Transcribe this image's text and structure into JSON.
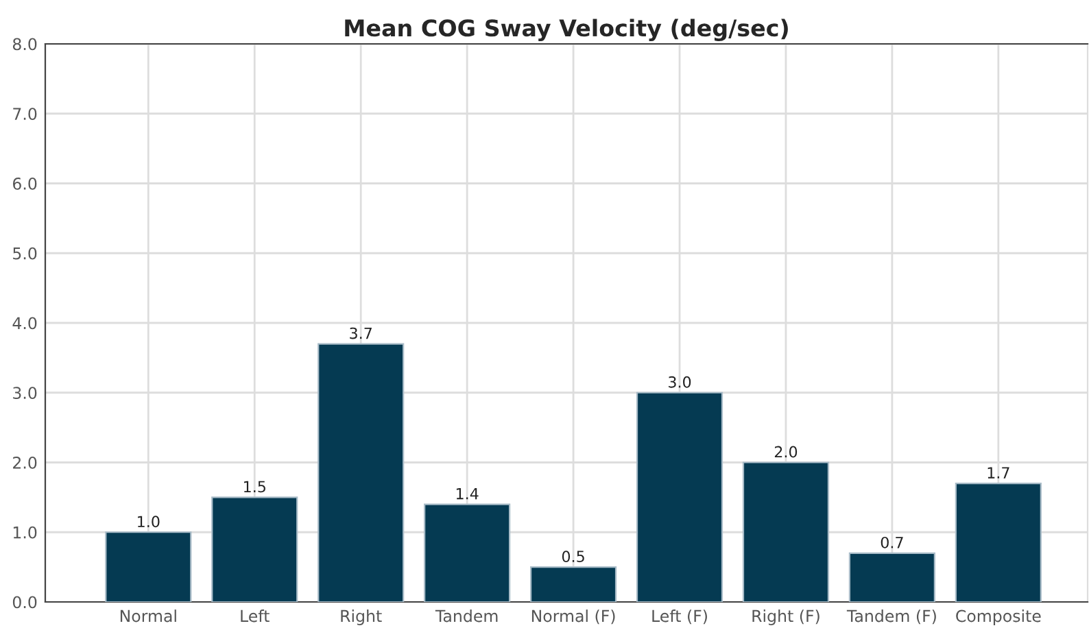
{
  "chart_data": {
    "type": "bar",
    "title": "Mean COG Sway Velocity (deg/sec)",
    "categories": [
      "Normal",
      "Left",
      "Right",
      "Tandem",
      "Normal (F)",
      "Left (F)",
      "Right (F)",
      "Tandem (F)",
      "Composite"
    ],
    "values": [
      1.0,
      1.5,
      3.7,
      1.4,
      0.5,
      3.0,
      2.0,
      0.7,
      1.7
    ],
    "color": "#053a52",
    "ylim": [
      0,
      8
    ],
    "yticks": [
      {
        "value": 0,
        "label": "0.0"
      },
      {
        "value": 1,
        "label": "1.0"
      },
      {
        "value": 2,
        "label": "2.0"
      },
      {
        "value": 3,
        "label": "3.0"
      },
      {
        "value": 4,
        "label": "4.0"
      },
      {
        "value": 5,
        "label": "5.0"
      },
      {
        "value": 6,
        "label": "6.0"
      },
      {
        "value": 7,
        "label": "7.0"
      },
      {
        "value": 8,
        "label": "8.0"
      }
    ],
    "value_labels": [
      "1.0",
      "1.5",
      "3.7",
      "1.4",
      "0.5",
      "3.0",
      "2.0",
      "0.7",
      "1.7"
    ],
    "grid": true,
    "legend": false
  }
}
